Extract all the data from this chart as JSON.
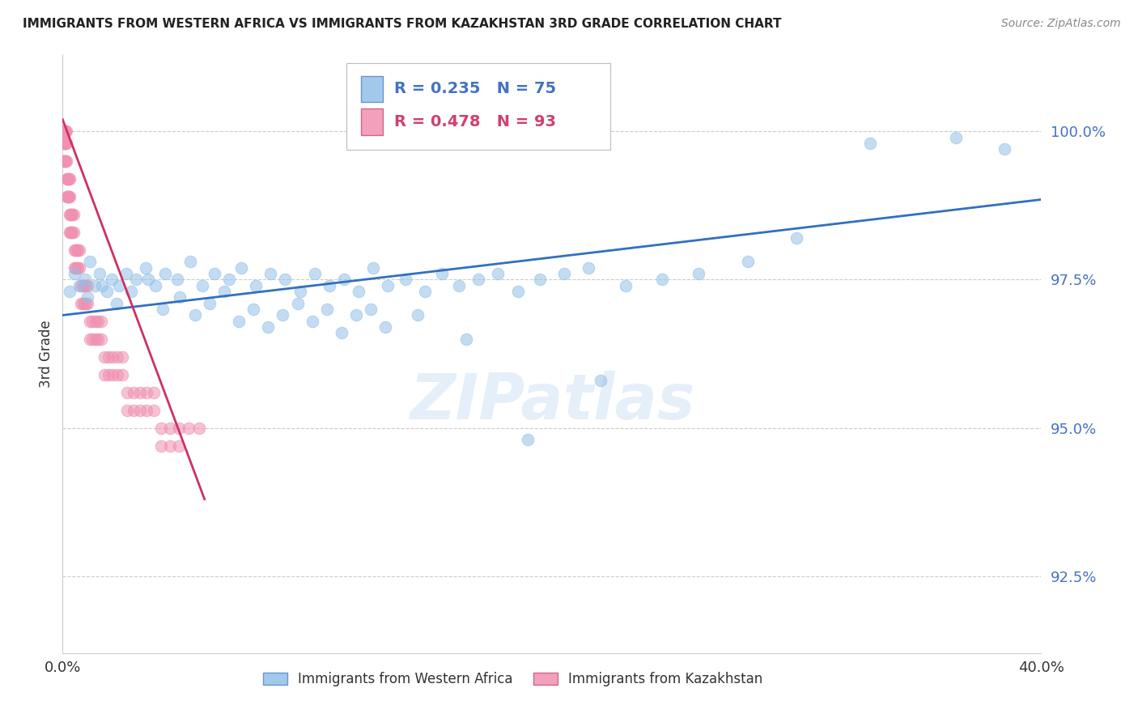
{
  "title": "IMMIGRANTS FROM WESTERN AFRICA VS IMMIGRANTS FROM KAZAKHSTAN 3RD GRADE CORRELATION CHART",
  "source": "Source: ZipAtlas.com",
  "ylabel": "3rd Grade",
  "ytick_labels": [
    "92.5%",
    "95.0%",
    "97.5%",
    "100.0%"
  ],
  "ytick_values": [
    92.5,
    95.0,
    97.5,
    100.0
  ],
  "xlim": [
    0.0,
    40.0
  ],
  "ylim": [
    91.2,
    101.3
  ],
  "blue_color": "#92c0e8",
  "pink_color": "#f090b0",
  "trendline_blue": "#3070c0",
  "trendline_pink": "#d03060",
  "legend_label_blue": "Immigrants from Western Africa",
  "legend_label_pink": "Immigrants from Kazakhstan",
  "watermark": "ZIPatlas",
  "blue_points_x": [
    0.3,
    0.5,
    0.7,
    0.9,
    1.1,
    1.3,
    1.5,
    1.8,
    2.0,
    2.3,
    2.6,
    3.0,
    3.4,
    3.8,
    4.2,
    4.7,
    5.2,
    5.7,
    6.2,
    6.8,
    7.3,
    7.9,
    8.5,
    9.1,
    9.7,
    10.3,
    10.9,
    11.5,
    12.1,
    12.7,
    13.3,
    14.0,
    14.8,
    15.5,
    16.2,
    17.0,
    17.8,
    18.6,
    19.5,
    20.5,
    21.5,
    23.0,
    24.5,
    26.0,
    28.0,
    30.0,
    33.0,
    36.5,
    38.5,
    1.0,
    1.6,
    2.2,
    2.8,
    3.5,
    4.1,
    4.8,
    5.4,
    6.0,
    6.6,
    7.2,
    7.8,
    8.4,
    9.0,
    9.6,
    10.2,
    10.8,
    11.4,
    12.0,
    12.6,
    13.2,
    14.5,
    16.5,
    19.0,
    22.0
  ],
  "blue_points_y": [
    97.3,
    97.6,
    97.4,
    97.5,
    97.8,
    97.4,
    97.6,
    97.3,
    97.5,
    97.4,
    97.6,
    97.5,
    97.7,
    97.4,
    97.6,
    97.5,
    97.8,
    97.4,
    97.6,
    97.5,
    97.7,
    97.4,
    97.6,
    97.5,
    97.3,
    97.6,
    97.4,
    97.5,
    97.3,
    97.7,
    97.4,
    97.5,
    97.3,
    97.6,
    97.4,
    97.5,
    97.6,
    97.3,
    97.5,
    97.6,
    97.7,
    97.4,
    97.5,
    97.6,
    97.8,
    98.2,
    99.8,
    99.9,
    99.7,
    97.2,
    97.4,
    97.1,
    97.3,
    97.5,
    97.0,
    97.2,
    96.9,
    97.1,
    97.3,
    96.8,
    97.0,
    96.7,
    96.9,
    97.1,
    96.8,
    97.0,
    96.6,
    96.9,
    97.0,
    96.7,
    96.9,
    96.5,
    94.8,
    95.8
  ],
  "pink_points_x": [
    0.05,
    0.08,
    0.1,
    0.12,
    0.15,
    0.05,
    0.08,
    0.1,
    0.12,
    0.15,
    0.05,
    0.08,
    0.1,
    0.12,
    0.15,
    0.18,
    0.2,
    0.22,
    0.25,
    0.28,
    0.18,
    0.2,
    0.22,
    0.25,
    0.28,
    0.3,
    0.33,
    0.36,
    0.4,
    0.44,
    0.3,
    0.33,
    0.36,
    0.4,
    0.44,
    0.48,
    0.52,
    0.57,
    0.62,
    0.68,
    0.48,
    0.52,
    0.57,
    0.62,
    0.68,
    0.74,
    0.8,
    0.87,
    0.95,
    1.03,
    0.74,
    0.8,
    0.87,
    0.95,
    1.03,
    1.12,
    1.22,
    1.33,
    1.45,
    1.58,
    1.12,
    1.22,
    1.33,
    1.45,
    1.58,
    1.72,
    1.88,
    2.05,
    2.23,
    2.43,
    1.72,
    1.88,
    2.05,
    2.23,
    2.43,
    2.65,
    2.9,
    3.15,
    3.43,
    3.72,
    2.65,
    2.9,
    3.15,
    3.43,
    3.72,
    4.04,
    4.38,
    4.75,
    5.15,
    5.58,
    4.04,
    4.38,
    4.75
  ],
  "pink_points_y": [
    100.0,
    100.0,
    100.0,
    100.0,
    100.0,
    99.8,
    99.8,
    99.8,
    99.8,
    99.8,
    99.5,
    99.5,
    99.5,
    99.5,
    99.5,
    99.2,
    99.2,
    99.2,
    99.2,
    99.2,
    98.9,
    98.9,
    98.9,
    98.9,
    98.9,
    98.6,
    98.6,
    98.6,
    98.6,
    98.6,
    98.3,
    98.3,
    98.3,
    98.3,
    98.3,
    98.0,
    98.0,
    98.0,
    98.0,
    98.0,
    97.7,
    97.7,
    97.7,
    97.7,
    97.7,
    97.4,
    97.4,
    97.4,
    97.4,
    97.4,
    97.1,
    97.1,
    97.1,
    97.1,
    97.1,
    96.8,
    96.8,
    96.8,
    96.8,
    96.8,
    96.5,
    96.5,
    96.5,
    96.5,
    96.5,
    96.2,
    96.2,
    96.2,
    96.2,
    96.2,
    95.9,
    95.9,
    95.9,
    95.9,
    95.9,
    95.6,
    95.6,
    95.6,
    95.6,
    95.6,
    95.3,
    95.3,
    95.3,
    95.3,
    95.3,
    95.0,
    95.0,
    95.0,
    95.0,
    95.0,
    94.7,
    94.7,
    94.7
  ],
  "blue_trend_x": [
    0.0,
    40.0
  ],
  "blue_trend_y": [
    96.9,
    98.85
  ],
  "pink_trend_x": [
    0.0,
    5.8
  ],
  "pink_trend_y": [
    100.2,
    93.8
  ],
  "xtick_positions": [
    0.0,
    5.0,
    10.0,
    15.0,
    20.0,
    25.0,
    30.0,
    35.0,
    40.0
  ]
}
